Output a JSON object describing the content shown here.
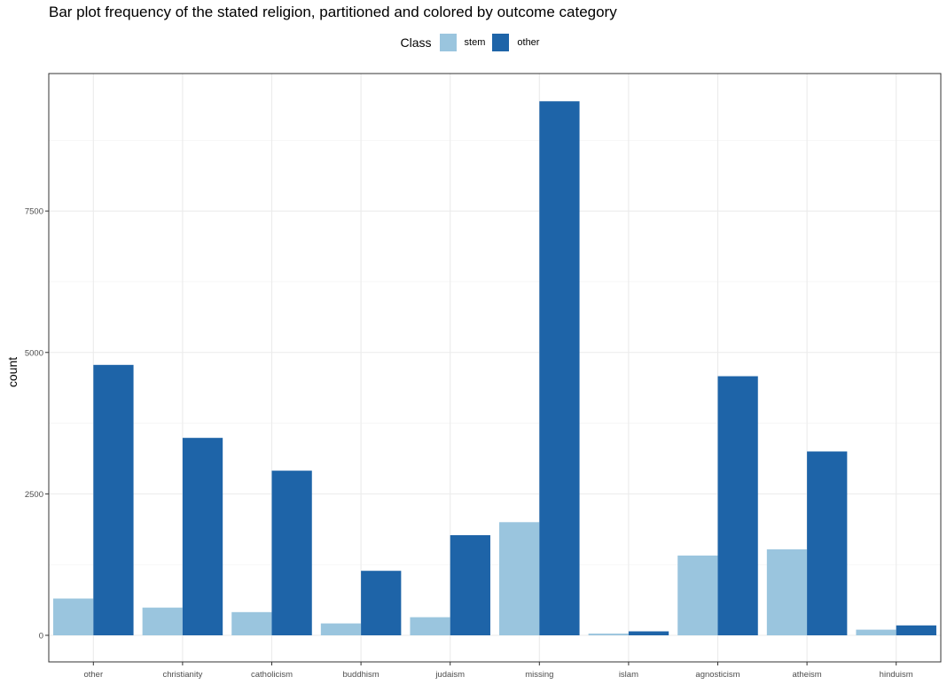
{
  "chart_data": {
    "type": "bar",
    "title": "Bar plot frequency of the stated religion, partitioned and colored by outcome category",
    "xlabel": "",
    "ylabel": "count",
    "legend_title": "Class",
    "legend_position": "top",
    "grid": true,
    "categories": [
      "other",
      "christianity",
      "catholicism",
      "buddhism",
      "judaism",
      "missing",
      "islam",
      "agnosticism",
      "atheism",
      "hinduism"
    ],
    "series": [
      {
        "name": "stem",
        "color": "#9ac5de",
        "values": [
          650,
          490,
          410,
          210,
          320,
          2000,
          30,
          1410,
          1520,
          100
        ]
      },
      {
        "name": "other",
        "color": "#1e64a8",
        "values": [
          4780,
          3490,
          2910,
          1140,
          1770,
          9440,
          70,
          4580,
          3250,
          175
        ]
      }
    ],
    "yticks": [
      0,
      2500,
      5000,
      7500
    ],
    "ylim": [
      -470,
      9930
    ]
  }
}
